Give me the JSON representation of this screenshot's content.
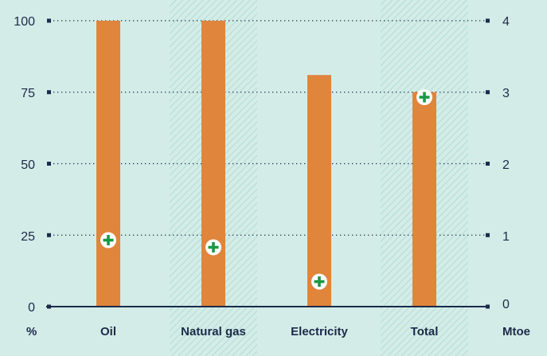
{
  "chart_data": {
    "type": "bar",
    "categories": [
      "Oil",
      "Natural gas",
      "Electricity",
      "Total"
    ],
    "series": [
      {
        "type": "bar",
        "axis": "left",
        "values": [
          100,
          100,
          81,
          75
        ]
      },
      {
        "type": "scatter",
        "marker": "plus",
        "axis": "right",
        "values": [
          0.93,
          0.83,
          0.35,
          2.93
        ]
      }
    ],
    "left_axis": {
      "unit": "%",
      "ticks": [
        "0",
        "25",
        "50",
        "75",
        "100"
      ],
      "ylim": [
        0,
        100
      ]
    },
    "right_axis": {
      "unit": "Mtoe",
      "ticks": [
        "0",
        "1",
        "2",
        "3",
        "4"
      ],
      "ylim": [
        0,
        4
      ]
    },
    "shaded_categories": [
      "Natural gas",
      "Total"
    ],
    "grid": "dotted",
    "colors": {
      "bar": "#e0853c",
      "marker": "#1a9a45",
      "axis": "#1a2b4a",
      "background": "#d4ece7",
      "hatch": "#a5d8cc"
    }
  }
}
